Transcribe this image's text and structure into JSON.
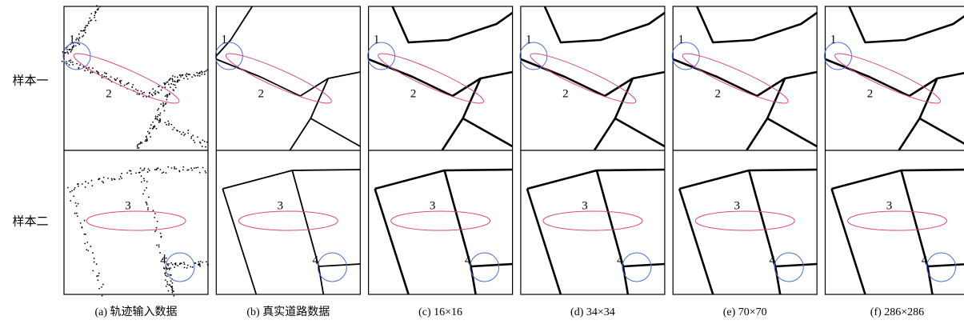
{
  "row_labels": [
    "样本一",
    "样本二"
  ],
  "annotations": [
    "1",
    "2",
    "3",
    "4"
  ],
  "panels": [
    {
      "caption": "(a) 轨迹输入数据"
    },
    {
      "caption": "(b) 真实道路数据"
    },
    {
      "caption": "(c) 16×16"
    },
    {
      "caption": "(d) 34×34"
    },
    {
      "caption": "(e) 70×70"
    },
    {
      "caption": "(f) 286×286"
    }
  ]
}
